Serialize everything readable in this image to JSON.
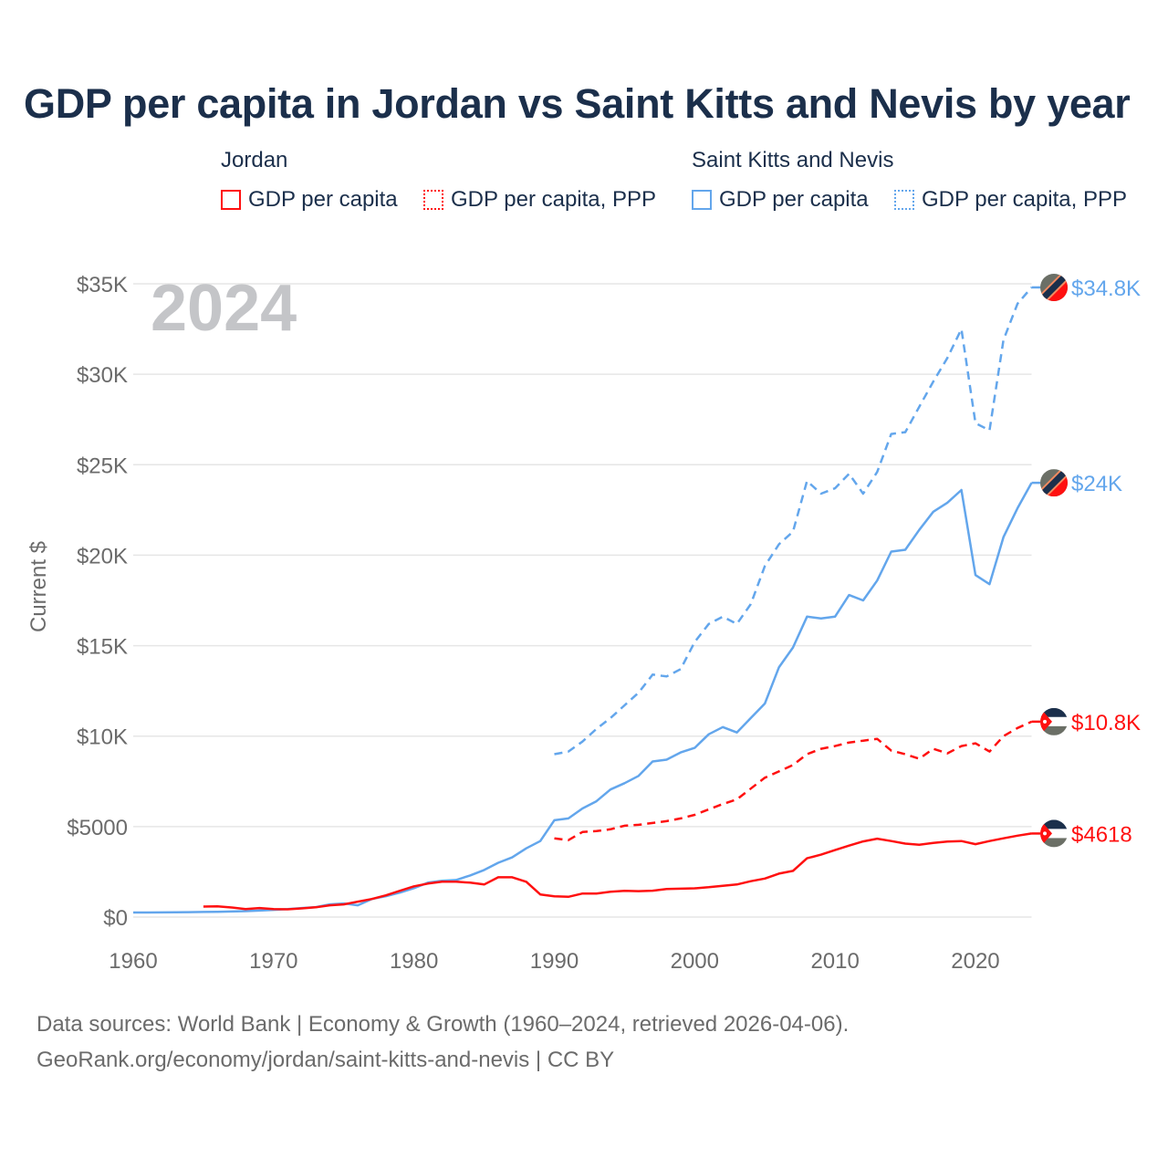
{
  "title": "GDP per capita in Jordan vs Saint Kitts and Nevis by year",
  "legend": {
    "groups": [
      {
        "country": "Jordan",
        "color": "#ff1010",
        "items": [
          "GDP per capita",
          "GDP per capita, PPP"
        ]
      },
      {
        "country": "Saint Kitts and Nevis",
        "color": "#63a6ec",
        "items": [
          "GDP per capita",
          "GDP per capita, PPP"
        ]
      }
    ]
  },
  "year_watermark": "2024",
  "footer": {
    "line1": "Data sources: World Bank | Economy & Growth (1960–2024, retrieved 2026-04-06).",
    "line2": "GeoRank.org/economy/jordan/saint-kitts-and-nevis | CC BY"
  },
  "chart_data": {
    "type": "line",
    "title": "GDP per capita in Jordan vs Saint Kitts and Nevis by year",
    "xlabel": "",
    "ylabel": "Current $",
    "xlim": [
      1960,
      2024
    ],
    "ylim": [
      0,
      35000
    ],
    "x_ticks": [
      1960,
      1970,
      1980,
      1990,
      2000,
      2010,
      2020
    ],
    "x_tick_labels": [
      "1960",
      "1970",
      "1980",
      "1990",
      "2000",
      "2010",
      "2020"
    ],
    "y_ticks": [
      0,
      5000,
      10000,
      15000,
      20000,
      25000,
      30000,
      35000
    ],
    "y_tick_labels": [
      "$0",
      "$5000",
      "$10K",
      "$15K",
      "$20K",
      "$25K",
      "$30K",
      "$35K"
    ],
    "grid": true,
    "legend_position": "top",
    "series": [
      {
        "name": "Saint Kitts and Nevis — GDP per capita, PPP",
        "color": "#63a6ec",
        "dash": true,
        "end_label": "$34.8K",
        "start_year": 1990,
        "values": [
          9000,
          9150,
          9700,
          10400,
          11000,
          11700,
          12400,
          13400,
          13300,
          13700,
          15200,
          16200,
          16600,
          16200,
          17300,
          19400,
          20600,
          21300,
          24100,
          23400,
          23700,
          24500,
          23400,
          24600,
          26700,
          26800,
          28200,
          29600,
          30900,
          32500,
          27300,
          26900,
          31900,
          33900,
          34800
        ]
      },
      {
        "name": "Saint Kitts and Nevis — GDP per capita",
        "color": "#63a6ec",
        "dash": false,
        "end_label": "$24K",
        "start_year": 1960,
        "values": [
          250,
          250,
          255,
          260,
          270,
          280,
          290,
          310,
          330,
          360,
          400,
          440,
          500,
          550,
          700,
          750,
          650,
          1000,
          1150,
          1350,
          1600,
          1900,
          2000,
          2050,
          2300,
          2600,
          3000,
          3300,
          3800,
          4200,
          5350,
          5450,
          6000,
          6400,
          7050,
          7400,
          7800,
          8600,
          8700,
          9100,
          9350,
          10100,
          10500,
          10200,
          11000,
          11800,
          13800,
          14900,
          16600,
          16500,
          16600,
          17800,
          17500,
          18600,
          20200,
          20300,
          21400,
          22400,
          22900,
          23600,
          18900,
          18400,
          21000,
          22600,
          24000
        ]
      },
      {
        "name": "Jordan — GDP per capita, PPP",
        "color": "#ff1010",
        "dash": true,
        "end_label": "$10.8K",
        "start_year": 1990,
        "values": [
          4350,
          4250,
          4700,
          4750,
          4850,
          5050,
          5100,
          5200,
          5300,
          5450,
          5650,
          5950,
          6250,
          6500,
          7100,
          7700,
          8050,
          8400,
          9000,
          9300,
          9450,
          9650,
          9750,
          9850,
          9200,
          9000,
          8750,
          9300,
          9050,
          9450,
          9600,
          9150,
          10000,
          10450,
          10800
        ]
      },
      {
        "name": "Jordan — GDP per capita",
        "color": "#ff1010",
        "dash": false,
        "end_label": "$4618",
        "start_year": 1965,
        "values": [
          580,
          590,
          530,
          440,
          500,
          440,
          430,
          480,
          540,
          650,
          700,
          850,
          1000,
          1200,
          1450,
          1700,
          1850,
          1950,
          1950,
          1900,
          1800,
          2200,
          2200,
          1950,
          1250,
          1150,
          1120,
          1300,
          1300,
          1400,
          1450,
          1430,
          1460,
          1550,
          1570,
          1590,
          1650,
          1730,
          1800,
          1980,
          2130,
          2400,
          2550,
          3250,
          3450,
          3700,
          3950,
          4180,
          4330,
          4200,
          4060,
          4000,
          4100,
          4170,
          4200,
          4030,
          4200,
          4350,
          4500,
          4618
        ]
      }
    ]
  }
}
